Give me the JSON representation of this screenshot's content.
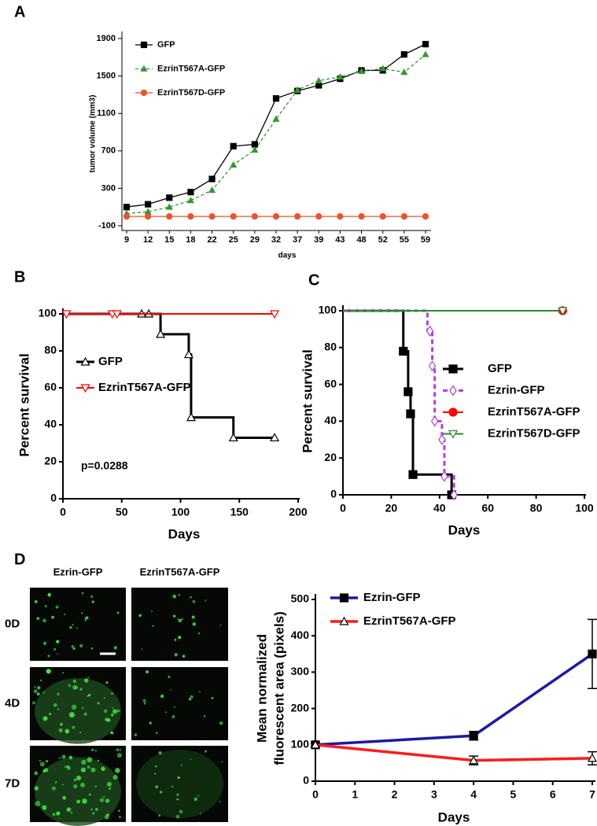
{
  "chart_data": [
    {
      "type": "line",
      "panel": "A",
      "xlabel": "days",
      "ylabel": "tumor volume (mm3)",
      "categories": [
        "9",
        "12",
        "15",
        "18",
        "22",
        "25",
        "29",
        "32",
        "37",
        "39",
        "43",
        "48",
        "52",
        "55",
        "59"
      ],
      "ylim": [
        -100,
        1900
      ],
      "yticks": [
        -100,
        300,
        700,
        1100,
        1500,
        1900
      ],
      "series": [
        {
          "name": "GFP",
          "color": "#000000",
          "marker": "square",
          "values": [
            100,
            130,
            200,
            260,
            400,
            750,
            770,
            1260,
            1340,
            1400,
            1470,
            1560,
            1560,
            1730,
            1840
          ]
        },
        {
          "name": "EzrinT567A-GFP",
          "color": "#2e9b2e",
          "dashed": true,
          "marker": "triangle",
          "values": [
            30,
            50,
            100,
            170,
            280,
            550,
            710,
            1040,
            1350,
            1450,
            1490,
            1550,
            1580,
            1540,
            1730
          ]
        },
        {
          "name": "EzrinT567D-GFP",
          "color": "#f0502a",
          "marker": "circle",
          "values": [
            0,
            0,
            0,
            0,
            0,
            0,
            0,
            0,
            0,
            0,
            0,
            0,
            0,
            0,
            0
          ]
        }
      ]
    },
    {
      "type": "step",
      "panel": "B",
      "xlabel": "Days",
      "ylabel": "Percent survival",
      "annotation": "p=0.0288",
      "xlim": [
        0,
        200
      ],
      "xticks": [
        0,
        50,
        100,
        150,
        200
      ],
      "ylim": [
        0,
        100
      ],
      "yticks": [
        0,
        20,
        40,
        60,
        80,
        100
      ],
      "series": [
        {
          "name": "GFP",
          "color": "#000000",
          "marker": "triangle",
          "marker_fill": "#ffffff",
          "x": [
            0,
            83,
            107,
            109,
            145,
            180
          ],
          "values": [
            100,
            89,
            78,
            44,
            33,
            33
          ],
          "marker_x": [
            67,
            73,
            83,
            107,
            109,
            145,
            180
          ],
          "marker_values": [
            100,
            100,
            89,
            78,
            44,
            33,
            33
          ]
        },
        {
          "name": "EzrinT567A-GFP",
          "color": "#ff0000",
          "marker": "triangle-down",
          "marker_fill": "#ffffff",
          "x": [
            0,
            180
          ],
          "values": [
            100,
            100
          ],
          "marker_x": [
            3,
            42,
            46,
            180
          ],
          "marker_values": [
            100,
            100,
            100,
            100
          ]
        }
      ]
    },
    {
      "type": "step",
      "panel": "C",
      "xlabel": "Days",
      "ylabel": "Percent survival",
      "xlim": [
        0,
        100
      ],
      "xticks": [
        0,
        20,
        40,
        60,
        80,
        100
      ],
      "ylim": [
        0,
        100
      ],
      "yticks": [
        0,
        20,
        40,
        60,
        80,
        100
      ],
      "series": [
        {
          "name": "GFP",
          "color": "#000000",
          "marker": "square",
          "marker_fill": "#000000",
          "x": [
            0,
            25,
            27,
            28,
            29,
            45
          ],
          "values": [
            100,
            78,
            56,
            44,
            11,
            0
          ],
          "marker_x": [
            25,
            27,
            28,
            29,
            45
          ],
          "marker_values": [
            78,
            56,
            44,
            11,
            0
          ]
        },
        {
          "name": "Ezrin-GFP",
          "color": "#b040e0",
          "dashed": true,
          "marker": "diamond",
          "marker_fill": "#ffffff",
          "x": [
            0,
            35,
            37,
            38,
            41,
            42,
            46
          ],
          "values": [
            100,
            89,
            70,
            40,
            30,
            10,
            0
          ],
          "marker_x": [
            36,
            37,
            38,
            41,
            42,
            46
          ],
          "marker_values": [
            89,
            70,
            40,
            30,
            10,
            0
          ]
        },
        {
          "name": "EzrinT567A-GFP",
          "color": "#ff0000",
          "marker": "circle",
          "marker_fill": "#ff0000",
          "x": [
            0,
            91
          ],
          "values": [
            100,
            100
          ],
          "marker_x": [
            91
          ],
          "marker_values": [
            100
          ]
        },
        {
          "name": "EzrinT567D-GFP",
          "color": "#2a8a2a",
          "marker": "triangle-down",
          "marker_fill": "#ffffff",
          "x": [
            0,
            91
          ],
          "values": [
            100,
            100
          ],
          "marker_x": [
            91
          ],
          "marker_values": [
            100
          ]
        }
      ]
    },
    {
      "type": "line",
      "panel": "D",
      "xlabel": "Days",
      "ylabel": [
        "Mean normalized",
        "fluorescent area (pixels)"
      ],
      "x": [
        0,
        4,
        7
      ],
      "xlim": [
        0,
        7
      ],
      "xticks": [
        0,
        1,
        2,
        3,
        4,
        5,
        6,
        7
      ],
      "ylim": [
        0,
        500
      ],
      "yticks": [
        0,
        100,
        200,
        300,
        400,
        500
      ],
      "series": [
        {
          "name": "Ezrin-GFP",
          "color": "#1a1aa8",
          "marker": "square",
          "marker_color": "#000000",
          "values": [
            100,
            125,
            350
          ],
          "errors": [
            5,
            12,
            95
          ]
        },
        {
          "name": "EzrinT567A-GFP",
          "color": "#ff1a1a",
          "marker": "triangle",
          "marker_color": "#000000",
          "marker_fill": "#ffffff",
          "values": [
            100,
            57,
            63
          ],
          "errors": [
            5,
            12,
            18
          ]
        }
      ]
    }
  ],
  "image_panel": {
    "columns": [
      "Ezrin-GFP",
      "EzrinT567A-GFP"
    ],
    "rows": [
      "0D",
      "4D",
      "7D"
    ]
  }
}
